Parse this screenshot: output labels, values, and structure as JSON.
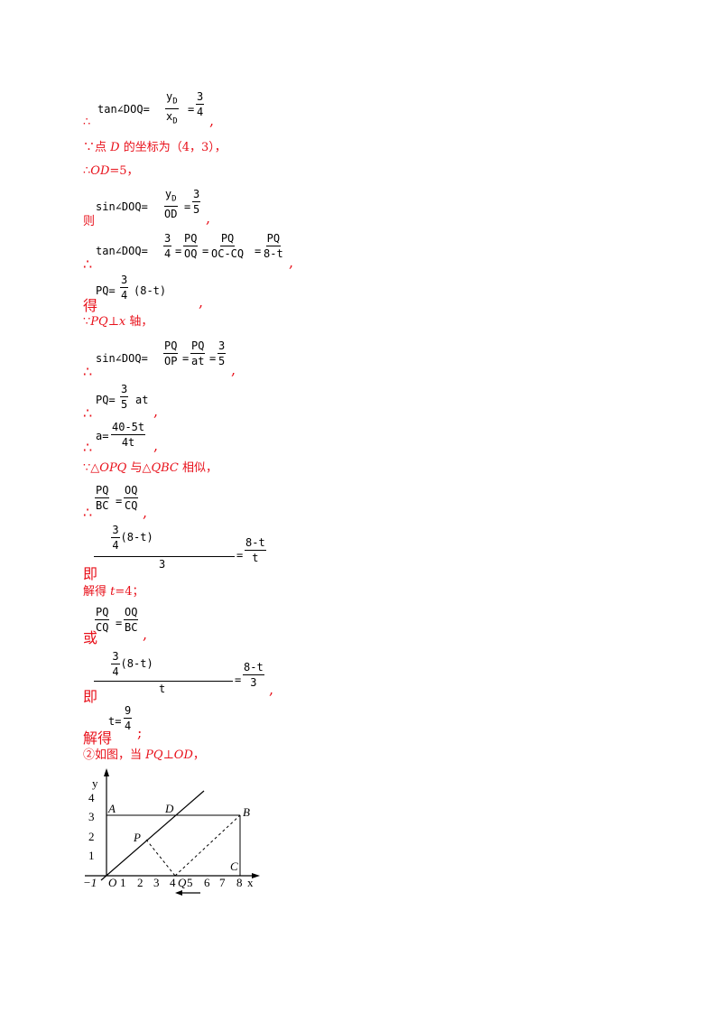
{
  "lines": {
    "l1": {
      "therefore": "∴",
      "expr": "tan∠DOQ=",
      "num_a": "y",
      "sub_a": "D",
      "den_a": "x",
      "sub_b": "D",
      "eq": "=",
      "num_b": "3",
      "den_b": "4",
      "end": ","
    },
    "l2": {
      "text_a": "∵点 ",
      "var": "D",
      "text_b": " 的坐标为（4，3），"
    },
    "l3": {
      "text_a": "∴",
      "var": "OD",
      "text_b": "=5，"
    },
    "l4": {
      "pre": "则",
      "expr": "sin∠DOQ=",
      "num_a": "y",
      "sub_a": "D",
      "den_a": "OD",
      "eq": "=",
      "num_b": "3",
      "den_b": "5",
      "end": ","
    },
    "l5": {
      "therefore": "∴",
      "expr": "tan∠DOQ=",
      "f1n": "3",
      "f1d": "4",
      "f2n": "PQ",
      "f2d": "OQ",
      "f3n": "PQ",
      "f3d": "OC-CQ",
      "f4n": "PQ",
      "f4d": "8-t",
      "eq": "=",
      "end": ","
    },
    "l6": {
      "pre": "得",
      "expr": "PQ=",
      "fn": "3",
      "fd": "4",
      "tail": "(8-t)",
      "end": ","
    },
    "l7": {
      "text_a": "∵",
      "var": "PQ",
      "text_b": "⊥",
      "var2": "x",
      "text_c": " 轴，"
    },
    "l8": {
      "therefore": "∴",
      "expr": "sin∠DOQ=",
      "f1n": "PQ",
      "f1d": "OP",
      "f2n": "PQ",
      "f2d": "at",
      "f3n": "3",
      "f3d": "5",
      "eq": "=",
      "end": ","
    },
    "l9": {
      "therefore": "∴",
      "expr": "PQ=",
      "fn": "3",
      "fd": "5",
      "tail": "at",
      "end": ","
    },
    "l10": {
      "therefore": "∴",
      "expr": "a=",
      "fn": "40-5t",
      "fd": "4t",
      "end": ","
    },
    "l11": {
      "text_a": "∵△",
      "var": "OPQ",
      "text_b": " 与△",
      "var2": "QBC",
      "text_c": " 相似，"
    },
    "l12": {
      "therefore": "∴",
      "f1n": "PQ",
      "f1d": "BC",
      "eq": "=",
      "f2n": "OQ",
      "f2d": "CQ",
      "end": ","
    },
    "l13": {
      "pre": "即",
      "inner_n": "3",
      "inner_d": "4",
      "inner_tail": "(8-t)",
      "big_d": "3",
      "eq": "=",
      "f2n": "8-t",
      "f2d": "t"
    },
    "l14": {
      "text_a": "解得 ",
      "var": "t",
      "text_b": "=4；"
    },
    "l15": {
      "pre": "或",
      "f1n": "PQ",
      "f1d": "CQ",
      "eq": "=",
      "f2n": "OQ",
      "f2d": "BC",
      "end": ","
    },
    "l16": {
      "pre": "即",
      "inner_n": "3",
      "inner_d": "4",
      "inner_tail": "(8-t)",
      "big_d": "t",
      "eq": "=",
      "f2n": "8-t",
      "f2d": "3",
      "end": ","
    },
    "l17": {
      "pre": "解得",
      "expr": "t=",
      "fn": "9",
      "fd": "4",
      "end": ";"
    },
    "l18": {
      "circ": "②",
      "text_a": "如图，当 ",
      "var": "PQ",
      "text_b": "⊥",
      "var2": "OD",
      "text_c": "，"
    }
  },
  "figure": {
    "y_label": "y",
    "x_label": "x",
    "y_ticks": [
      "4",
      "3",
      "2",
      "1"
    ],
    "x_ticks": [
      "1",
      "2",
      "3",
      "4",
      "6",
      "7",
      "8"
    ],
    "neg_tick": "−1",
    "origin": "O",
    "points": {
      "A": "A",
      "D": "D",
      "B": "B",
      "P": "P",
      "C": "C",
      "Q": "Q",
      "Q5": "5"
    }
  }
}
